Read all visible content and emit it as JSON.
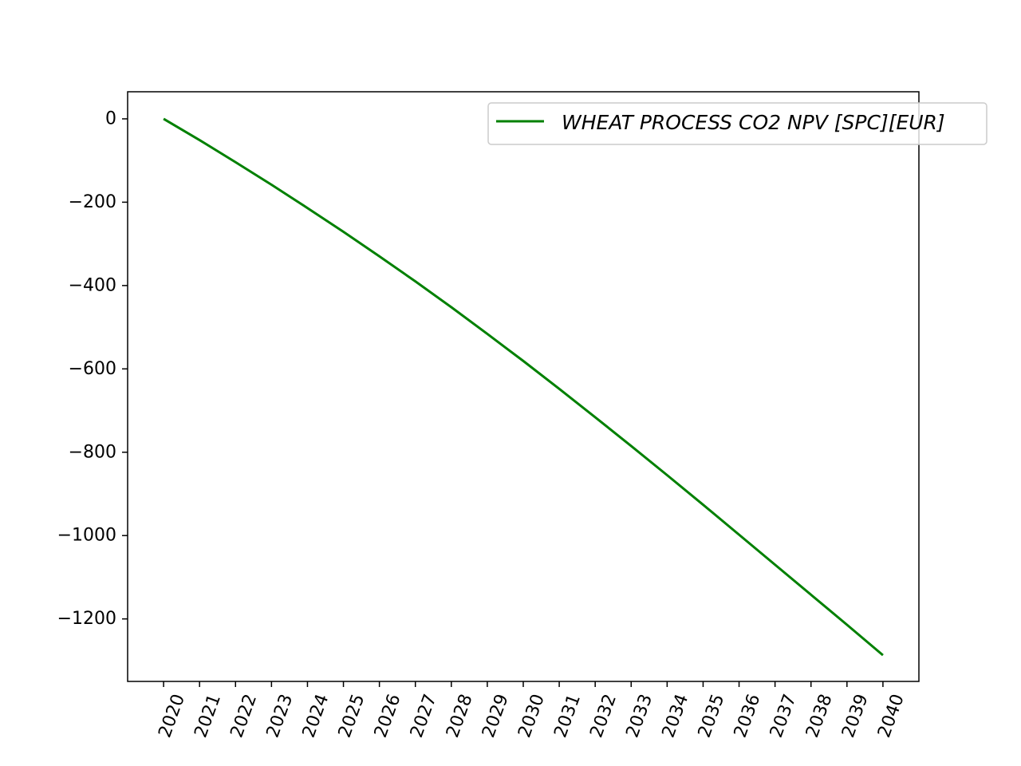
{
  "chart_data": {
    "type": "line",
    "title": "",
    "xlabel": "",
    "ylabel": "",
    "x": [
      2020,
      2021,
      2022,
      2023,
      2024,
      2025,
      2026,
      2027,
      2028,
      2029,
      2030,
      2031,
      2032,
      2033,
      2034,
      2035,
      2036,
      2037,
      2038,
      2039,
      2040
    ],
    "x_tick_labels": [
      "2020",
      "2021",
      "2022",
      "2023",
      "2024",
      "2025",
      "2026",
      "2027",
      "2028",
      "2029",
      "2030",
      "2031",
      "2032",
      "2033",
      "2034",
      "2035",
      "2036",
      "2037",
      "2038",
      "2039",
      "2040"
    ],
    "y_ticks": [
      0,
      -200,
      -400,
      -600,
      -800,
      -1000,
      -1200
    ],
    "y_tick_labels": [
      "0",
      "−200",
      "−400",
      "−600",
      "−800",
      "−1000",
      "−1200"
    ],
    "xlim": [
      2019,
      2041.0
    ],
    "ylim": [
      -1350,
      65
    ],
    "grid": false,
    "legend_position": "top-right",
    "series": [
      {
        "name": "WHEAT PROCESS CO2 NPV [SPC][EUR]",
        "color": "#008000",
        "values": [
          0,
          -51,
          -104,
          -158,
          -214,
          -271,
          -330,
          -390,
          -452,
          -516,
          -581,
          -648,
          -716,
          -785,
          -855,
          -926,
          -998,
          -1070,
          -1142,
          -1214,
          -1287
        ]
      }
    ]
  }
}
